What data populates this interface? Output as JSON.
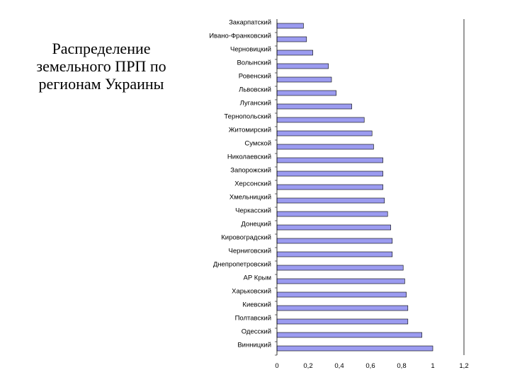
{
  "slide": {
    "title": "Распределение земельного ПРП по регионам Украины"
  },
  "chart_data": {
    "type": "bar",
    "orientation": "horizontal",
    "title": "",
    "xlabel": "",
    "ylabel": "",
    "xlim": [
      0,
      1.2
    ],
    "x_ticks": [
      "0",
      "0,2",
      "0,4",
      "0,6",
      "0,8",
      "1",
      "1,2"
    ],
    "grid": false,
    "legend": "none",
    "bar_color": "#9b9bf0",
    "bar_edge_color": "#000000",
    "categories": [
      "Закарпатский",
      "Ивано-Франковский",
      "Черновицкий",
      "Волынский",
      "Ровенский",
      "Львовский",
      "Луганский",
      "Тернопольский",
      "Житомирский",
      "Сумской",
      "Николаевский",
      "Запорожский",
      "Херсонский",
      "Хмельницкий",
      "Черкасский",
      "Донецкий",
      "Кировоградский",
      "Черниговский",
      "Днепропетровский",
      "АР Крым",
      "Харьковский",
      "Киевский",
      "Полтавский",
      "Одесский",
      "Винницкий"
    ],
    "values": [
      0.17,
      0.19,
      0.23,
      0.33,
      0.35,
      0.38,
      0.48,
      0.56,
      0.61,
      0.62,
      0.68,
      0.68,
      0.68,
      0.69,
      0.71,
      0.73,
      0.74,
      0.74,
      0.81,
      0.82,
      0.83,
      0.84,
      0.84,
      0.93,
      1.0
    ]
  }
}
